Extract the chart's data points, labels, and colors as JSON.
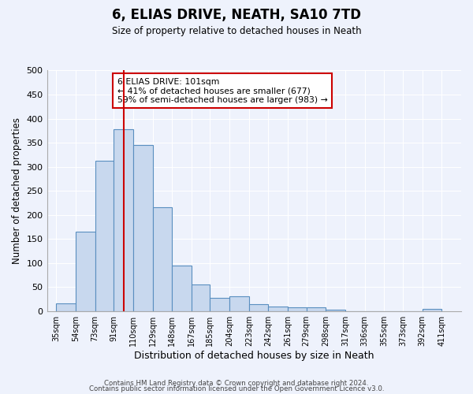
{
  "title": "6, ELIAS DRIVE, NEATH, SA10 7TD",
  "subtitle": "Size of property relative to detached houses in Neath",
  "xlabel": "Distribution of detached houses by size in Neath",
  "ylabel": "Number of detached properties",
  "bar_left_edges": [
    35,
    54,
    73,
    91,
    110,
    129,
    148,
    167,
    185,
    204,
    223,
    242,
    261,
    279,
    298,
    317,
    336,
    355,
    373,
    392
  ],
  "bar_widths": [
    19,
    19,
    18,
    19,
    19,
    19,
    19,
    18,
    19,
    19,
    19,
    19,
    18,
    19,
    19,
    19,
    19,
    18,
    19,
    19
  ],
  "bar_heights": [
    16,
    165,
    313,
    378,
    345,
    215,
    95,
    55,
    27,
    30,
    15,
    9,
    8,
    7,
    2,
    0,
    0,
    0,
    0,
    5
  ],
  "tick_labels": [
    "35sqm",
    "54sqm",
    "73sqm",
    "91sqm",
    "110sqm",
    "129sqm",
    "148sqm",
    "167sqm",
    "185sqm",
    "204sqm",
    "223sqm",
    "242sqm",
    "261sqm",
    "279sqm",
    "298sqm",
    "317sqm",
    "336sqm",
    "355sqm",
    "373sqm",
    "392sqm",
    "411sqm"
  ],
  "tick_positions": [
    35,
    54,
    73,
    91,
    110,
    129,
    148,
    167,
    185,
    204,
    223,
    242,
    261,
    279,
    298,
    317,
    336,
    355,
    373,
    392,
    411
  ],
  "ylim": [
    0,
    500
  ],
  "yticks": [
    0,
    50,
    100,
    150,
    200,
    250,
    300,
    350,
    400,
    450,
    500
  ],
  "vline_x": 101,
  "vline_color": "#cc0000",
  "bar_facecolor": "#c8d8ee",
  "bar_edgecolor": "#5a8fc0",
  "annotation_title": "6 ELIAS DRIVE: 101sqm",
  "annotation_line1": "← 41% of detached houses are smaller (677)",
  "annotation_line2": "59% of semi-detached houses are larger (983) →",
  "footer_line1": "Contains HM Land Registry data © Crown copyright and database right 2024.",
  "footer_line2": "Contains public sector information licensed under the Open Government Licence v3.0.",
  "bg_color": "#eef2fc",
  "grid_color": "#ffffff",
  "xlim": [
    26,
    430
  ]
}
